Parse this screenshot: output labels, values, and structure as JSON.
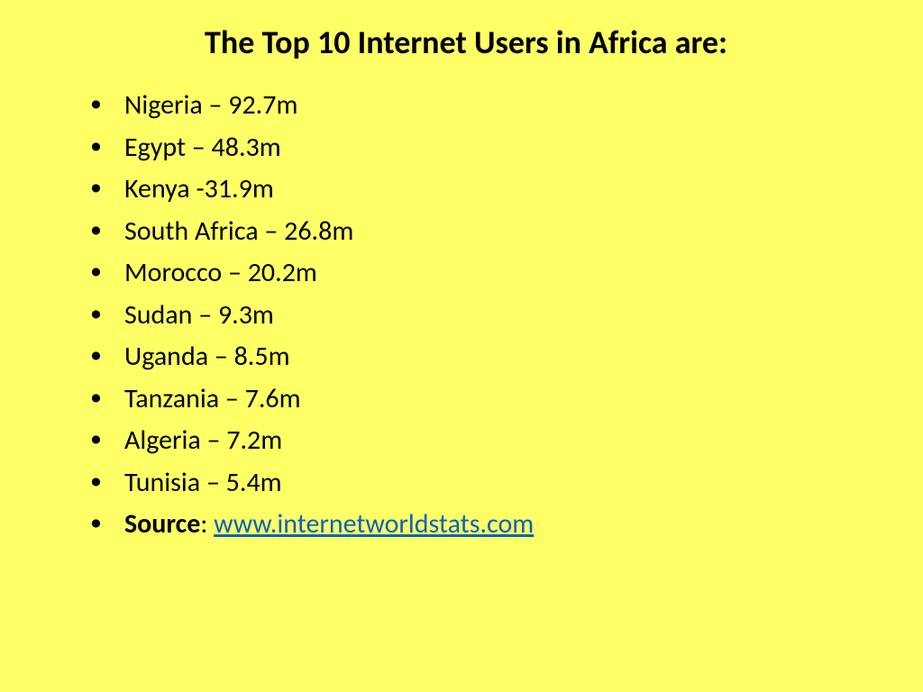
{
  "slide": {
    "title": "The Top 10 Internet Users in Africa are:",
    "background_color": "#ffff66",
    "text_color": "#000000",
    "link_color": "#0563c1",
    "title_fontsize": 36,
    "body_fontsize": 30,
    "items": [
      "Nigeria – 92.7m",
      "Egypt – 48.3m",
      " Kenya -31.9m",
      "South Africa – 26.8m",
      "Morocco – 20.2m",
      "Sudan – 9.3m",
      "Uganda – 8.5m",
      "Tanzania – 7.6m",
      "Algeria – 7.2m",
      "Tunisia – 5.4m"
    ],
    "source": {
      "label": "Source",
      "separator": ": ",
      "url_text": "www.internetworldstats.com"
    }
  }
}
